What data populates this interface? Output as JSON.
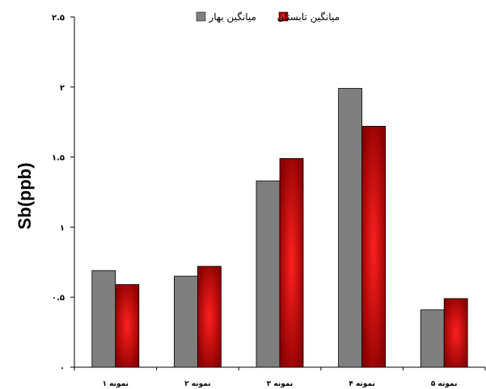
{
  "chart_data": {
    "type": "bar",
    "ylabel": "Sb(ppb)",
    "ylim": [
      0,
      2.5
    ],
    "yticks": [
      {
        "value": 0,
        "label": "۰"
      },
      {
        "value": 0.5,
        "label": "۰.۵"
      },
      {
        "value": 1,
        "label": "۱"
      },
      {
        "value": 1.5,
        "label": "۱.۵"
      },
      {
        "value": 2,
        "label": "۲"
      },
      {
        "value": 2.5,
        "label": "۲.۵"
      }
    ],
    "categories": [
      "نمونه ۱",
      "نمونه ۲",
      "نمونه ۳",
      "نمونه ۴",
      "نمونه ۵"
    ],
    "series": [
      {
        "name": "میانگین بهار",
        "color": "#7f7f7f",
        "values": [
          0.69,
          0.65,
          1.33,
          1.99,
          0.41
        ]
      },
      {
        "name": "میانگین تابستان",
        "color": "#cc0000",
        "values": [
          0.59,
          0.72,
          1.49,
          1.72,
          0.49
        ]
      }
    ],
    "legend_position": "top-right",
    "grid": false
  }
}
